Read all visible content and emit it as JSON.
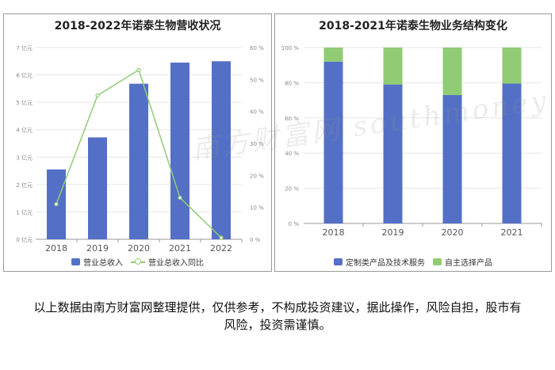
{
  "chart_data": [
    {
      "type": "bar",
      "title": "2018-2022年诺泰生物营收状况",
      "categories": [
        "2018",
        "2019",
        "2020",
        "2021",
        "2022"
      ],
      "series": [
        {
          "name": "营业总收入",
          "type": "bar",
          "axis": "left",
          "values": [
            2.55,
            3.72,
            5.68,
            6.45,
            6.5
          ],
          "color": "#5470c6"
        },
        {
          "name": "营业总收入同比",
          "type": "line",
          "axis": "right",
          "values": [
            11,
            45,
            53,
            13,
            0.5
          ],
          "color": "#91cc75"
        }
      ],
      "y_left": {
        "ticks": [
          "0 亿元",
          "1 亿元",
          "2 亿元",
          "3 亿元",
          "4 亿元",
          "5 亿元",
          "6 亿元",
          "7 亿元"
        ],
        "min": 0,
        "max": 7
      },
      "y_right": {
        "ticks": [
          "0 %",
          "10 %",
          "20 %",
          "30 %",
          "40 %",
          "50 %",
          "60 %"
        ],
        "min": 0,
        "max": 60
      },
      "grid": true,
      "legend": "bottom"
    },
    {
      "type": "bar",
      "stacked": true,
      "title": "2018-2021年诺泰生物业务结构变化",
      "categories": [
        "2018",
        "2019",
        "2020",
        "2021"
      ],
      "series": [
        {
          "name": "定制类产品及技术服务",
          "values": [
            92,
            79,
            73,
            79.5
          ],
          "color": "#5470c6"
        },
        {
          "name": "自主选择产品",
          "values": [
            8,
            21,
            27,
            20.5
          ],
          "color": "#91cc75"
        }
      ],
      "y": {
        "ticks": [
          "0 %",
          "20 %",
          "40 %",
          "60 %",
          "80 %",
          "100 %"
        ],
        "min": 0,
        "max": 100
      },
      "grid": true,
      "legend": "bottom"
    }
  ],
  "watermark": "南方财富网 southmoney",
  "disclaimer": "以上数据由南方财富网整理提供，仅供参考，不构成投资建议，据此操作，风险自担，股市有风险，投资需谨慎。"
}
